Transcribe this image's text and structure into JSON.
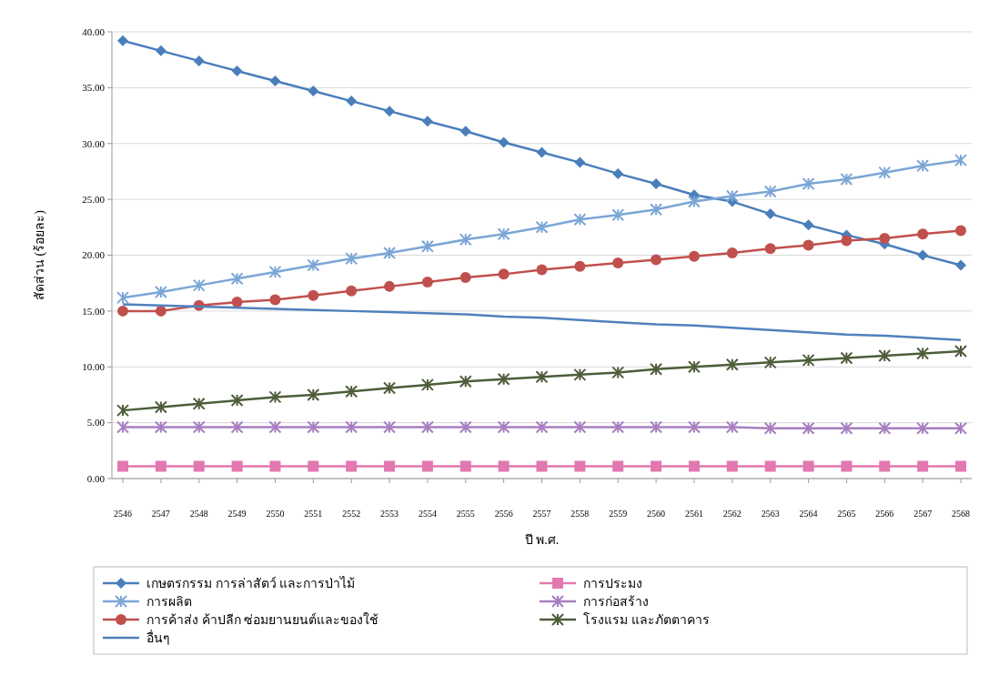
{
  "chart_data": {
    "type": "line",
    "xlabel": "ปี พ.ศ.",
    "ylabel": "สัดส่วน (ร้อยละ)",
    "categories": [
      "2546",
      "2547",
      "2548",
      "2549",
      "2550",
      "2551",
      "2552",
      "2553",
      "2554",
      "2555",
      "2556",
      "2557",
      "2558",
      "2559",
      "2560",
      "2561",
      "2562",
      "2563",
      "2564",
      "2565",
      "2566",
      "2567",
      "2568"
    ],
    "ylim": [
      0,
      40
    ],
    "yticks": [
      {
        "value": 0,
        "label": "0.00"
      },
      {
        "value": 5,
        "label": "5.00"
      },
      {
        "value": 10,
        "label": "10.00"
      },
      {
        "value": 15,
        "label": "15.00"
      },
      {
        "value": 20,
        "label": "20.00"
      },
      {
        "value": 25,
        "label": "25.00"
      },
      {
        "value": 30,
        "label": "30.00"
      },
      {
        "value": 35,
        "label": "35.00"
      },
      {
        "value": 40,
        "label": "40.00"
      }
    ],
    "grid": "y",
    "legend": "bottom",
    "series": [
      {
        "name": "เกษตรกรรม การล่าสัตว์ และการป่าไม้",
        "color": "#4a7ebb",
        "marker": "diamond",
        "values": [
          39.2,
          38.3,
          37.4,
          36.5,
          35.6,
          34.7,
          33.8,
          32.9,
          32.0,
          31.1,
          30.1,
          29.2,
          28.3,
          27.3,
          26.4,
          25.4,
          24.8,
          23.7,
          22.7,
          21.8,
          21.0,
          20.0,
          19.1
        ]
      },
      {
        "name": "การผลิต",
        "color": "#7ba6d6",
        "marker": "cross",
        "values": [
          16.2,
          16.7,
          17.3,
          17.9,
          18.5,
          19.1,
          19.7,
          20.2,
          20.8,
          21.4,
          21.9,
          22.5,
          23.2,
          23.6,
          24.1,
          24.8,
          25.3,
          25.7,
          26.4,
          26.8,
          27.4,
          28.0,
          28.5
        ]
      },
      {
        "name": "การค้าส่ง ค้าปลีก ซ่อมยานยนต์และของใช้",
        "color": "#c0504d",
        "marker": "circle",
        "values": [
          15.0,
          15.0,
          15.5,
          15.8,
          16.0,
          16.4,
          16.8,
          17.2,
          17.6,
          18.0,
          18.3,
          18.7,
          19.0,
          19.3,
          19.6,
          19.9,
          20.2,
          20.6,
          20.9,
          21.3,
          21.5,
          21.9,
          22.2
        ]
      },
      {
        "name": "อื่นๆ",
        "color": "#4f81bd",
        "marker": "none",
        "values": [
          15.6,
          15.5,
          15.4,
          15.3,
          15.2,
          15.1,
          15.0,
          14.9,
          14.8,
          14.7,
          14.5,
          14.4,
          14.2,
          14.0,
          13.8,
          13.7,
          13.5,
          13.3,
          13.1,
          12.9,
          12.8,
          12.6,
          12.4
        ]
      },
      {
        "name": "การประมง",
        "color": "#e377b0",
        "marker": "square",
        "values": [
          1.1,
          1.1,
          1.1,
          1.1,
          1.1,
          1.1,
          1.1,
          1.1,
          1.1,
          1.1,
          1.1,
          1.1,
          1.1,
          1.1,
          1.1,
          1.1,
          1.1,
          1.1,
          1.1,
          1.1,
          1.1,
          1.1,
          1.1
        ]
      },
      {
        "name": "การก่อสร้าง",
        "color": "#a77fc0",
        "marker": "cross",
        "values": [
          4.6,
          4.6,
          4.6,
          4.6,
          4.6,
          4.6,
          4.6,
          4.6,
          4.6,
          4.6,
          4.6,
          4.6,
          4.6,
          4.6,
          4.6,
          4.6,
          4.6,
          4.5,
          4.5,
          4.5,
          4.5,
          4.5,
          4.5
        ]
      },
      {
        "name": "โรงแรม และภัตตาคาร",
        "color": "#4d5d3a",
        "marker": "cross",
        "values": [
          6.1,
          6.4,
          6.7,
          7.0,
          7.3,
          7.5,
          7.8,
          8.1,
          8.4,
          8.7,
          8.9,
          9.1,
          9.3,
          9.5,
          9.8,
          10.0,
          10.2,
          10.4,
          10.6,
          10.8,
          11.0,
          11.2,
          11.4
        ]
      }
    ]
  }
}
